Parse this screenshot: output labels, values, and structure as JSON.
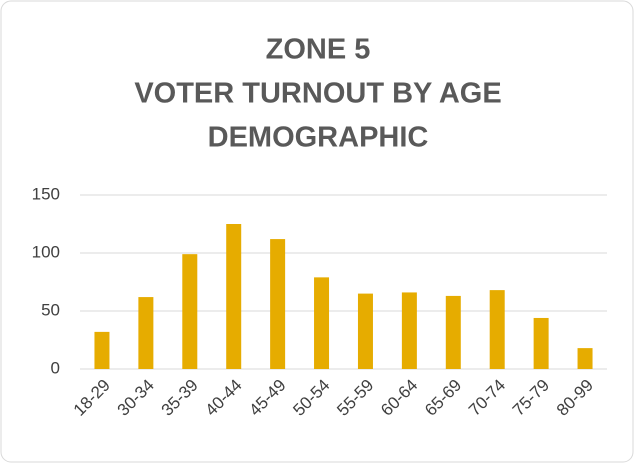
{
  "chart_data": {
    "type": "bar",
    "title": [
      "ZONE 5",
      "VOTER TURNOUT BY AGE",
      "DEMOGRAPHIC"
    ],
    "categories": [
      "18-29",
      "30-34",
      "35-39",
      "40-44",
      "45-49",
      "50-54",
      "55-59",
      "60-64",
      "65-69",
      "70-74",
      "75-79",
      "80-99"
    ],
    "values": [
      32,
      62,
      99,
      125,
      112,
      79,
      65,
      66,
      63,
      68,
      44,
      18
    ],
    "color": "#e6ac00",
    "ylim": [
      0,
      150
    ],
    "yticks": [
      0,
      50,
      100,
      150
    ],
    "grid": true
  }
}
